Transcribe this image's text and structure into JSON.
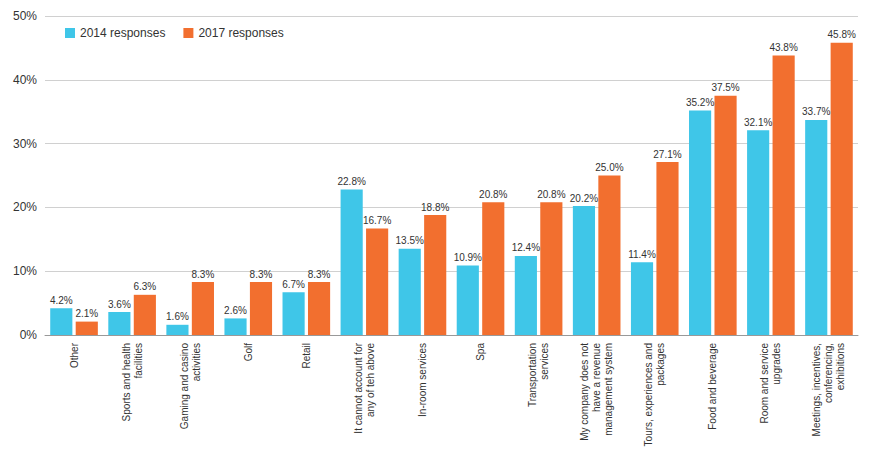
{
  "chart_data": {
    "type": "bar",
    "categories": [
      "Other",
      "Sports and health facilities",
      "Gaming and casino activities",
      "Golf",
      "Retail",
      "It cannot account for any of teh above",
      "In-room services",
      "Spa",
      "Transportation services",
      "My company does not have a revenue management system",
      "Tours, experiences and packages",
      "Food and beverage",
      "Room and service upgrades",
      "Meetings, incentives, conferencing, exhibitions"
    ],
    "series": [
      {
        "name": "2014 responses",
        "color": "#3fc6e8",
        "values": [
          4.2,
          3.6,
          1.6,
          2.6,
          6.7,
          22.8,
          13.5,
          10.9,
          12.4,
          20.2,
          11.4,
          35.2,
          32.1,
          33.7
        ],
        "value_labels": [
          "4.2%",
          "3.6%",
          "1.6%",
          "2.6%",
          "6.7%",
          "22.8%",
          "13.5%",
          "10.9%",
          "12.4%",
          "20.2%",
          "11.4%",
          "35.2%",
          "32.1%",
          "33.7%"
        ]
      },
      {
        "name": "2017 responses",
        "color": "#f26f2f",
        "values": [
          2.1,
          6.3,
          8.3,
          8.3,
          8.3,
          16.7,
          18.8,
          20.8,
          20.8,
          25.0,
          27.1,
          37.5,
          43.8,
          45.8
        ],
        "value_labels": [
          "2.1%",
          "6.3%",
          "8.3%",
          "8.3%",
          "8.3%",
          "16.7%",
          "18.8%",
          "20.8%",
          "20.8%",
          "25.0%",
          "27.1%",
          "37.5%",
          "43.8%",
          "45.8%"
        ]
      }
    ],
    "ylim": [
      0,
      50
    ],
    "yticks": [
      {
        "value": 0,
        "label": "0%"
      },
      {
        "value": 10,
        "label": "10%"
      },
      {
        "value": 20,
        "label": "20%"
      },
      {
        "value": 30,
        "label": "30%"
      },
      {
        "value": 40,
        "label": "40%"
      },
      {
        "value": 50,
        "label": "50%"
      }
    ],
    "grid": true,
    "legend": "upper left",
    "data_labels": true
  }
}
